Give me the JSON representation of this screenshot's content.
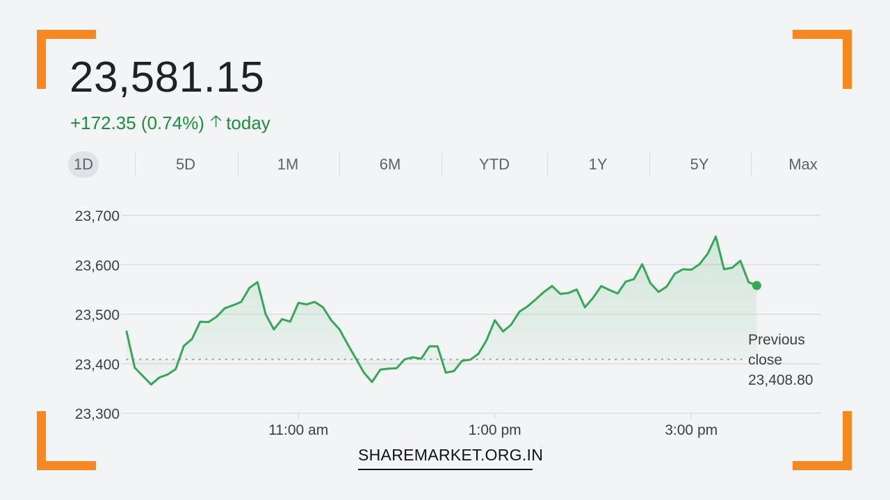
{
  "quote": {
    "price": "23,581.15",
    "change": "+172.35 (0.74%)",
    "period_label": "today"
  },
  "ranges": [
    "1D",
    "5D",
    "1M",
    "6M",
    "YTD",
    "1Y",
    "5Y",
    "Max"
  ],
  "active_range": "1D",
  "brand": "SHAREMARKET.ORG.IN",
  "colors": {
    "positive": "#1e8e3e",
    "line": "#34a853",
    "accent": "#f7871f"
  },
  "chart_data": {
    "type": "area",
    "ylim": [
      23300,
      23700
    ],
    "y_ticks": [
      {
        "value": 23700,
        "label": "23,700"
      },
      {
        "value": 23600,
        "label": "23,600"
      },
      {
        "value": 23500,
        "label": "23,500"
      },
      {
        "value": 23400,
        "label": "23,400"
      },
      {
        "value": 23300,
        "label": "23,300"
      }
    ],
    "x_range": [
      "09:15",
      "15:30"
    ],
    "x_ticks": [
      {
        "time": "11:00",
        "label": "11:00 am"
      },
      {
        "time": "13:00",
        "label": "1:00 pm"
      },
      {
        "time": "15:00",
        "label": "3:00 pm"
      }
    ],
    "previous_close": {
      "value": 23408.8,
      "label_lines": [
        "Previous",
        "close",
        "23,408.80"
      ]
    },
    "series": [
      {
        "points": [
          [
            "09:15",
            23465
          ],
          [
            "09:20",
            23392
          ],
          [
            "09:30",
            23358
          ],
          [
            "09:35",
            23372
          ],
          [
            "09:40",
            23378
          ],
          [
            "09:45",
            23389
          ],
          [
            "09:50",
            23436
          ],
          [
            "09:55",
            23450
          ],
          [
            "10:00",
            23485
          ],
          [
            "10:05",
            23484
          ],
          [
            "10:10",
            23495
          ],
          [
            "10:15",
            23512
          ],
          [
            "10:20",
            23518
          ],
          [
            "10:25",
            23525
          ],
          [
            "10:30",
            23553
          ],
          [
            "10:35",
            23565
          ],
          [
            "10:40",
            23500
          ],
          [
            "10:45",
            23469
          ],
          [
            "10:50",
            23490
          ],
          [
            "10:55",
            23485
          ],
          [
            "11:00",
            23523
          ],
          [
            "11:05",
            23520
          ],
          [
            "11:10",
            23525
          ],
          [
            "11:15",
            23514
          ],
          [
            "11:20",
            23488
          ],
          [
            "11:25",
            23470
          ],
          [
            "11:30",
            23440
          ],
          [
            "11:35",
            23411
          ],
          [
            "11:40",
            23382
          ],
          [
            "11:45",
            23363
          ],
          [
            "11:50",
            23388
          ],
          [
            "11:55",
            23390
          ],
          [
            "12:00",
            23391
          ],
          [
            "12:05",
            23409
          ],
          [
            "12:10",
            23413
          ],
          [
            "12:15",
            23410
          ],
          [
            "12:20",
            23435
          ],
          [
            "12:25",
            23435
          ],
          [
            "12:30",
            23382
          ],
          [
            "12:35",
            23385
          ],
          [
            "12:40",
            23406
          ],
          [
            "12:45",
            23408
          ],
          [
            "12:50",
            23420
          ],
          [
            "12:55",
            23448
          ],
          [
            "13:00",
            23488
          ],
          [
            "13:05",
            23465
          ],
          [
            "13:10",
            23479
          ],
          [
            "13:15",
            23505
          ],
          [
            "13:20",
            23516
          ],
          [
            "13:25",
            23530
          ],
          [
            "13:30",
            23545
          ],
          [
            "13:35",
            23557
          ],
          [
            "13:40",
            23541
          ],
          [
            "13:45",
            23543
          ],
          [
            "13:50",
            23550
          ],
          [
            "13:55",
            23514
          ],
          [
            "14:00",
            23533
          ],
          [
            "14:05",
            23557
          ],
          [
            "14:10",
            23549
          ],
          [
            "14:15",
            23542
          ],
          [
            "14:20",
            23566
          ],
          [
            "14:25",
            23571
          ],
          [
            "14:30",
            23601
          ],
          [
            "14:35",
            23563
          ],
          [
            "14:40",
            23545
          ],
          [
            "14:45",
            23556
          ],
          [
            "14:50",
            23582
          ],
          [
            "14:55",
            23591
          ],
          [
            "15:00",
            23590
          ],
          [
            "15:05",
            23601
          ],
          [
            "15:10",
            23622
          ],
          [
            "15:15",
            23657
          ],
          [
            "15:20",
            23591
          ],
          [
            "15:25",
            23594
          ],
          [
            "15:30",
            23608
          ]
        ],
        "tail": [
          [
            "15:35",
            23565
          ],
          [
            "15:40",
            23558
          ]
        ]
      }
    ]
  }
}
